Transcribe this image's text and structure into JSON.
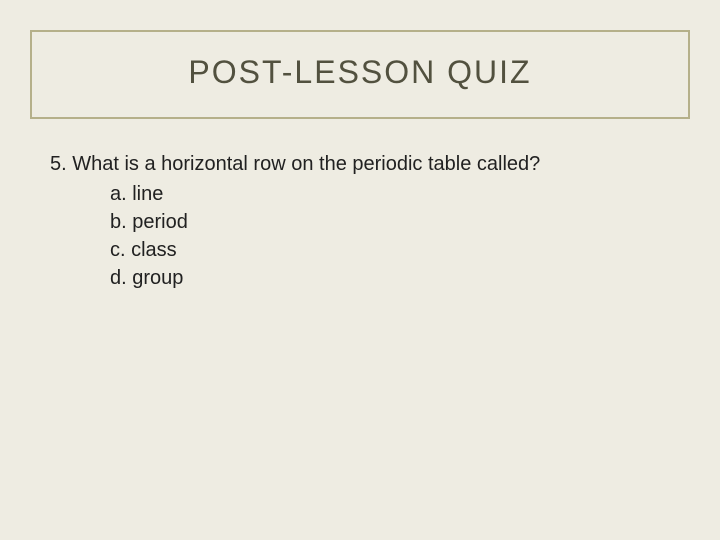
{
  "title": {
    "text": "POST-LESSON QUIZ",
    "color": "#52513f",
    "fontsize": 32,
    "border_color": "#b5b08a"
  },
  "background_color": "#eeece2",
  "question": {
    "number": "5.",
    "text": "5. What is a horizontal row on the periodic table called?",
    "text_color": "#212121",
    "fontsize": 20
  },
  "options": [
    {
      "label": "a.",
      "text": "a. line"
    },
    {
      "label": "b.",
      "text": "b. period"
    },
    {
      "label": "c.",
      "text": "c. class"
    },
    {
      "label": "d.",
      "text": "d. group"
    }
  ]
}
